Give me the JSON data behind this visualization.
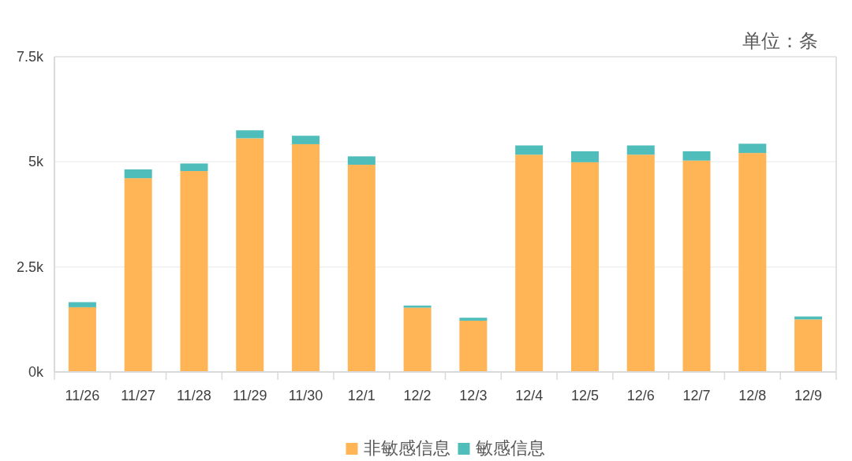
{
  "chart_data": {
    "type": "bar",
    "stacked": true,
    "categories": [
      "11/26",
      "11/27",
      "11/28",
      "11/29",
      "11/30",
      "12/1",
      "12/2",
      "12/3",
      "12/4",
      "12/5",
      "12/6",
      "12/7",
      "12/8",
      "12/9"
    ],
    "series": [
      {
        "name": "非敏感信息",
        "color": "#ffb456",
        "values": [
          1540,
          4610,
          4780,
          5560,
          5420,
          4930,
          1530,
          1220,
          5170,
          4990,
          5170,
          5030,
          5210,
          1250
        ]
      },
      {
        "name": "敏感信息",
        "color": "#4fbdba",
        "values": [
          120,
          210,
          180,
          190,
          200,
          200,
          50,
          70,
          220,
          260,
          220,
          220,
          220,
          70
        ]
      }
    ],
    "ylim": [
      0,
      7500
    ],
    "yticks": [
      {
        "value": 0,
        "label": "0k"
      },
      {
        "value": 2500,
        "label": "2.5k"
      },
      {
        "value": 5000,
        "label": "5k"
      },
      {
        "value": 7500,
        "label": "7.5k"
      }
    ],
    "grid": "y",
    "legend": "bottom",
    "annotations": [
      "单位：条"
    ]
  }
}
